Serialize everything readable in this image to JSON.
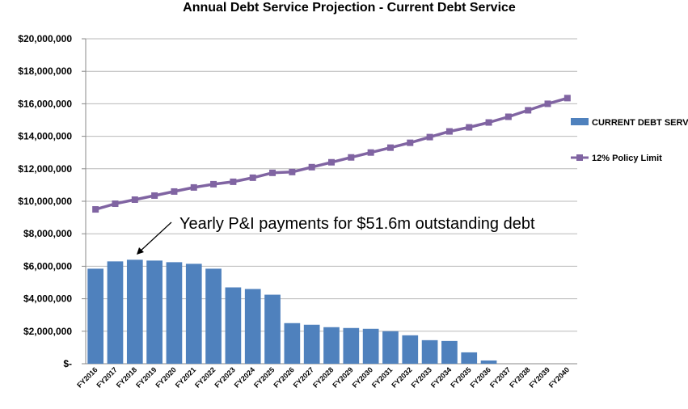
{
  "chart_data": {
    "type": "bar",
    "title": "Annual Debt Service Projection - Current Debt Service",
    "categories": [
      "FY2016",
      "FY2017",
      "FY2018",
      "FY2019",
      "FY2020",
      "FY2021",
      "FY2022",
      "FY2023",
      "FY2024",
      "FY2025",
      "FY2026",
      "FY2027",
      "FY2028",
      "FY2029",
      "FY2030",
      "FY2031",
      "FY2032",
      "FY2033",
      "FY2034",
      "FY2035",
      "FY2036",
      "FY2037",
      "FY2038",
      "FY2039",
      "FY2040"
    ],
    "series": [
      {
        "name": "CURRENT DEBT SERVICE",
        "type": "bar",
        "color": "#4f81bd",
        "values": [
          5850000,
          6300000,
          6400000,
          6350000,
          6250000,
          6150000,
          5850000,
          4700000,
          4600000,
          4250000,
          2500000,
          2400000,
          2250000,
          2200000,
          2150000,
          2000000,
          1750000,
          1450000,
          1400000,
          700000,
          200000,
          0,
          0,
          0,
          0
        ]
      },
      {
        "name": "12% Policy Limit",
        "type": "line",
        "color": "#8064a2",
        "values": [
          9500000,
          9850000,
          10100000,
          10350000,
          10600000,
          10850000,
          11050000,
          11200000,
          11450000,
          11750000,
          11800000,
          12100000,
          12400000,
          12700000,
          13000000,
          13300000,
          13600000,
          13950000,
          14300000,
          14550000,
          14850000,
          15200000,
          15600000,
          16000000,
          16350000
        ]
      }
    ],
    "yticks": [
      "$-",
      "$2,000,000",
      "$4,000,000",
      "$6,000,000",
      "$8,000,000",
      "$10,000,000",
      "$12,000,000",
      "$14,000,000",
      "$16,000,000",
      "$18,000,000",
      "$20,000,000"
    ],
    "ylim": [
      0,
      20000000
    ],
    "grid": true,
    "legend_position": "right",
    "annotation": "Yearly P&I payments for $51.6m outstanding debt"
  }
}
